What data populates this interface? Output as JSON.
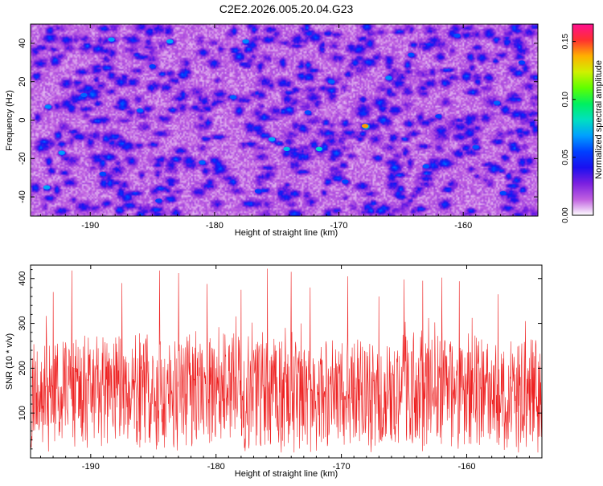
{
  "figure_title": "C2E2.2026.005.20.04.G23",
  "chart_data": [
    {
      "type": "heatmap",
      "title": "C2E2.2026.005.20.04.G23",
      "xlabel": "Height of straight line (km)",
      "ylabel": "Frequency (Hz)",
      "xlim": [
        -194.8,
        -154.0
      ],
      "ylim": [
        -50,
        50
      ],
      "x_ticks": [
        -190,
        -180,
        -170,
        -160
      ],
      "y_ticks": [
        -40,
        -20,
        0,
        20,
        40
      ],
      "x_tick_labels": [
        "-190",
        "-180",
        "-170",
        "-160"
      ],
      "y_tick_labels": [
        "-40",
        "-20",
        "0",
        "20",
        "40"
      ],
      "colorbar": {
        "label": "Normalized spectral amplitude",
        "range": [
          0.0,
          0.165
        ],
        "ticks": [
          0.0,
          0.05,
          0.1,
          0.15
        ],
        "tick_labels": [
          "0.00",
          "0.05",
          "0.10",
          "0.15"
        ],
        "colormap": [
          "#ffffff",
          "#c060e0",
          "#7a1fe0",
          "#1a10f0",
          "#0040ff",
          "#00a0ff",
          "#00e0c0",
          "#00f060",
          "#60ff00",
          "#d0f000",
          "#ffb000",
          "#ff3030",
          "#ff1090"
        ]
      },
      "background_level": 0.015,
      "typical_blob_level": 0.045,
      "max_value": 0.14,
      "hotspots": [
        {
          "x": -167.9,
          "y": -3,
          "value": 0.14
        },
        {
          "x": -171.6,
          "y": -15,
          "value": 0.08
        },
        {
          "x": -174.2,
          "y": -15,
          "value": 0.075
        },
        {
          "x": -175.4,
          "y": -10,
          "value": 0.07
        },
        {
          "x": -183.6,
          "y": 41,
          "value": 0.07
        },
        {
          "x": -188.3,
          "y": 42,
          "value": 0.068
        },
        {
          "x": -193.5,
          "y": -35,
          "value": 0.07
        },
        {
          "x": -192.3,
          "y": -17,
          "value": 0.068
        },
        {
          "x": -193.4,
          "y": 7,
          "value": 0.065
        },
        {
          "x": -186.0,
          "y": 5,
          "value": 0.06
        },
        {
          "x": -190.5,
          "y": 13,
          "value": 0.06
        },
        {
          "x": -166.0,
          "y": 22,
          "value": 0.065
        },
        {
          "x": -157.3,
          "y": 9,
          "value": 0.06
        },
        {
          "x": -177.5,
          "y": 41,
          "value": 0.065
        },
        {
          "x": -170.6,
          "y": 20,
          "value": 0.06
        },
        {
          "x": -181.0,
          "y": -22,
          "value": 0.06
        },
        {
          "x": -178.5,
          "y": 12,
          "value": 0.06
        },
        {
          "x": -163.0,
          "y": -24,
          "value": 0.058
        },
        {
          "x": -159.0,
          "y": -14,
          "value": 0.058
        },
        {
          "x": -160.5,
          "y": 44,
          "value": 0.057
        },
        {
          "x": -164.2,
          "y": 34,
          "value": 0.057
        },
        {
          "x": -172.5,
          "y": 4,
          "value": 0.057
        },
        {
          "x": -169.5,
          "y": -32,
          "value": 0.056
        },
        {
          "x": -156.8,
          "y": -38,
          "value": 0.056
        },
        {
          "x": -189.0,
          "y": -28,
          "value": 0.056
        },
        {
          "x": -184.5,
          "y": -42,
          "value": 0.055
        },
        {
          "x": -185.0,
          "y": 28,
          "value": 0.055
        },
        {
          "x": -162.0,
          "y": 2,
          "value": 0.055
        },
        {
          "x": -155.3,
          "y": 30,
          "value": 0.055
        },
        {
          "x": -176.5,
          "y": -37,
          "value": 0.054
        }
      ]
    },
    {
      "type": "line",
      "xlabel": "Height of straight line (km)",
      "ylabel": "SNR (10 * v/v)",
      "xlim": [
        -194.8,
        -154.0
      ],
      "ylim": [
        0,
        430
      ],
      "x_ticks": [
        -190,
        -180,
        -170,
        -160
      ],
      "y_ticks": [
        100,
        200,
        300,
        400
      ],
      "x_tick_labels": [
        "-190",
        "-180",
        "-170",
        "-160"
      ],
      "y_tick_labels": [
        "100",
        "200",
        "300",
        "400"
      ],
      "series": [
        {
          "name": "SNR",
          "color": "#ee2222",
          "n_points": 1400,
          "mean": 145,
          "typical_min": 30,
          "typical_max": 300,
          "peaks": [
            {
              "x": -175.9,
              "y": 422
            },
            {
              "x": -184.5,
              "y": 418
            },
            {
              "x": -191.5,
              "y": 418
            },
            {
              "x": -174.0,
              "y": 415
            },
            {
              "x": -183.0,
              "y": 412
            },
            {
              "x": -169.5,
              "y": 405
            },
            {
              "x": -162.0,
              "y": 402
            },
            {
              "x": -165.0,
              "y": 398
            },
            {
              "x": -163.5,
              "y": 395
            },
            {
              "x": -160.6,
              "y": 394
            },
            {
              "x": -187.5,
              "y": 390
            },
            {
              "x": -180.7,
              "y": 388
            },
            {
              "x": -172.5,
              "y": 380
            },
            {
              "x": -178.0,
              "y": 375
            },
            {
              "x": -193.0,
              "y": 370
            },
            {
              "x": -157.5,
              "y": 365
            },
            {
              "x": -155.3,
              "y": 305
            },
            {
              "x": -167.0,
              "y": 360
            }
          ]
        }
      ]
    }
  ]
}
